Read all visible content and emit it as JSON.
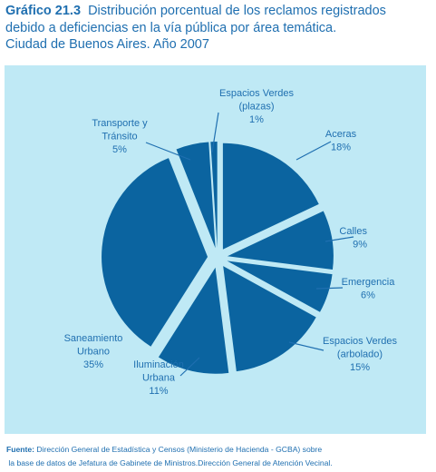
{
  "header": {
    "figure_number": "Gráfico 21.3",
    "title_line1": "Distribución porcentual de los reclamos registrados",
    "title_line2": "debido a deficiencias en la vía pública por área temática.",
    "title_line3": "Ciudad de Buenos Aires. Año 2007"
  },
  "colors": {
    "slice_fill": "#0b64a0",
    "background": "#bfe9f5",
    "text": "#1f6fb0"
  },
  "chart_data": {
    "type": "pie",
    "style": "exploded",
    "title": "Distribución porcentual de los reclamos registrados debido a deficiencias en la vía pública por área temática. Ciudad de Buenos Aires. Año 2007",
    "unit": "%",
    "slices": [
      {
        "label": "Aceras",
        "value": 18,
        "label_lines": [
          "Aceras",
          "18%"
        ]
      },
      {
        "label": "Calles",
        "value": 9,
        "label_lines": [
          "Calles",
          "9%"
        ]
      },
      {
        "label": "Emergencia",
        "value": 6,
        "label_lines": [
          "Emergencia",
          "6%"
        ]
      },
      {
        "label": "Espacios Verdes (arbolado)",
        "value": 15,
        "label_lines": [
          "Espacios Verdes",
          "(arbolado)",
          "15%"
        ]
      },
      {
        "label": "Iluminación Urbana",
        "value": 11,
        "label_lines": [
          "Iluminación",
          "Urbana",
          "11%"
        ]
      },
      {
        "label": "Saneamiento Urbano",
        "value": 35,
        "label_lines": [
          "Saneamiento",
          "Urbano",
          "35%"
        ]
      },
      {
        "label": "Transporte y Tránsito",
        "value": 5,
        "label_lines": [
          "Transporte y",
          "Tránsito",
          "5%"
        ]
      },
      {
        "label": "Espacios Verdes (plazas)",
        "value": 1,
        "label_lines": [
          "Espacios Verdes",
          "(plazas)",
          "1%"
        ]
      }
    ]
  },
  "footer": {
    "source_label": "Fuente:",
    "source_line1": " Dirección General de Estadística y Censos (Ministerio de Hacienda - GCBA) sobre",
    "source_line2": "la base de datos de Jefatura de Gabinete de Ministros.Dirección General de Atención Vecinal."
  }
}
